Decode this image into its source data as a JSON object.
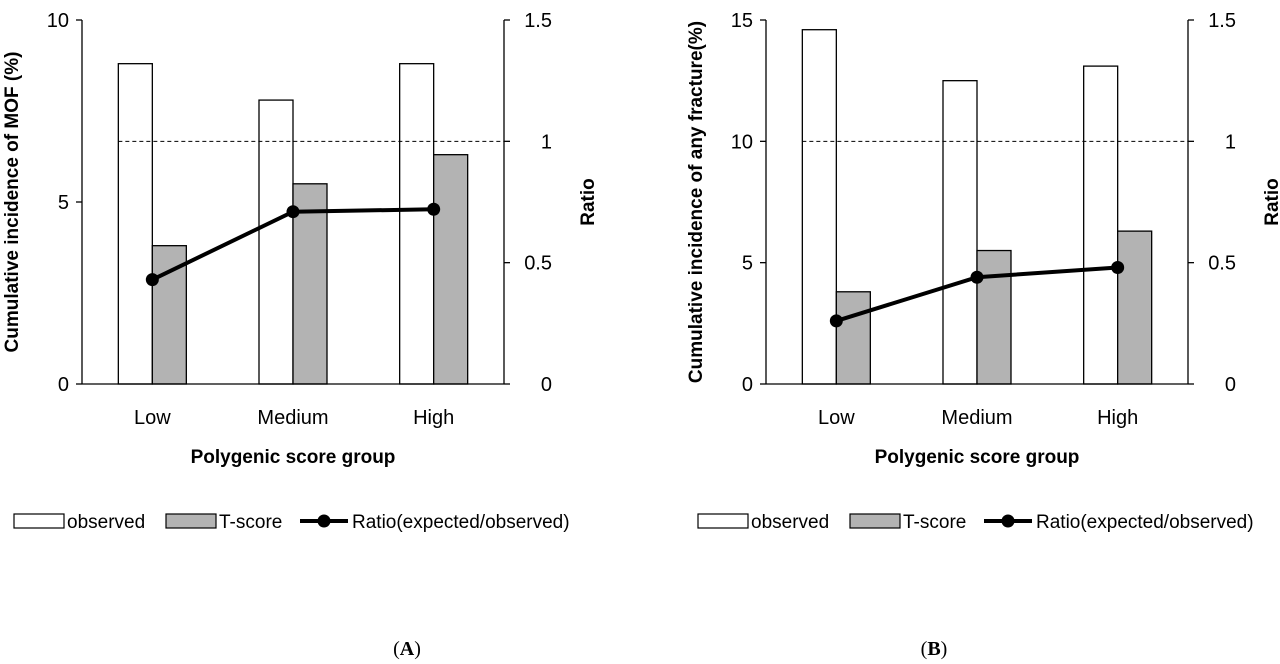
{
  "chart_data": [
    {
      "type": "bar",
      "categories": [
        "Low",
        "Medium",
        "High"
      ],
      "series": [
        {
          "name": "observed",
          "kind": "bar",
          "axis": "left",
          "values": [
            8.8,
            7.8,
            8.8
          ],
          "fill": "#ffffff"
        },
        {
          "name": "T-score",
          "kind": "bar",
          "axis": "left",
          "values": [
            3.8,
            5.5,
            6.3
          ],
          "fill": "#b3b3b3"
        },
        {
          "name": "Ratio(expected/observed)",
          "kind": "line",
          "axis": "right",
          "values": [
            0.43,
            0.71,
            0.72
          ],
          "color": "#000000"
        }
      ],
      "reference_line": {
        "axis": "right",
        "value": 1,
        "style": "dashed"
      },
      "xlabel": "Polygenic score group",
      "ylabel": "Cumulative incidence of MOF (%)",
      "y2label": "Ratio",
      "ylim": [
        0,
        10
      ],
      "yticks": [
        "0",
        "5",
        "10"
      ],
      "ytick_values": [
        0,
        5,
        10
      ],
      "y2lim": [
        0,
        1.5
      ],
      "y2ticks": [
        "0",
        "0.5",
        "1",
        "1.5"
      ],
      "y2tick_values": [
        0,
        0.5,
        1,
        1.5
      ],
      "grid": false,
      "legend_position": "bottom",
      "panel_label": "(A)"
    },
    {
      "type": "bar",
      "categories": [
        "Low",
        "Medium",
        "High"
      ],
      "series": [
        {
          "name": "observed",
          "kind": "bar",
          "axis": "left",
          "values": [
            14.6,
            12.5,
            13.1
          ],
          "fill": "#ffffff"
        },
        {
          "name": "T-score",
          "kind": "bar",
          "axis": "left",
          "values": [
            3.8,
            5.5,
            6.3
          ],
          "fill": "#b3b3b3"
        },
        {
          "name": "Ratio(expected/observed)",
          "kind": "line",
          "axis": "right",
          "values": [
            0.26,
            0.44,
            0.48
          ],
          "color": "#000000"
        }
      ],
      "reference_line": {
        "axis": "right",
        "value": 1,
        "style": "dashed"
      },
      "xlabel": "Polygenic score group",
      "ylabel": "Cumulative incidence of any fracture(%)",
      "y2label": "Ratio",
      "ylim": [
        0,
        15
      ],
      "yticks": [
        "0",
        "5",
        "10",
        "15"
      ],
      "ytick_values": [
        0,
        5,
        10,
        15
      ],
      "y2lim": [
        0,
        1.5
      ],
      "y2ticks": [
        "0",
        "0.5",
        "1",
        "1.5"
      ],
      "y2tick_values": [
        0,
        0.5,
        1,
        1.5
      ],
      "grid": false,
      "legend_position": "bottom",
      "panel_label": "(B)"
    }
  ]
}
